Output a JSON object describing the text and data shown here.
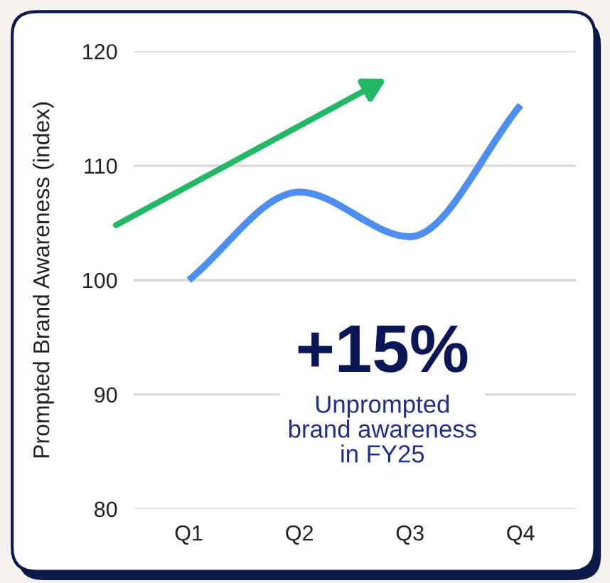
{
  "chart_data": {
    "type": "line",
    "ylabel": "Prompted Brand Awareness (index)",
    "categories": [
      "Q1",
      "Q2",
      "Q3",
      "Q4"
    ],
    "series": [
      {
        "color": "#4d8ef0",
        "values": [
          100,
          107.7,
          103.8,
          115.3
        ]
      }
    ],
    "ylim": [
      80,
      120
    ],
    "yticks": [
      80,
      90,
      100,
      110,
      120
    ],
    "grid": "y",
    "marker": "none",
    "line_style": "solid",
    "annotations": [
      "+15%",
      "Unprompted\nbrand awareness\nin FY25"
    ]
  }
}
